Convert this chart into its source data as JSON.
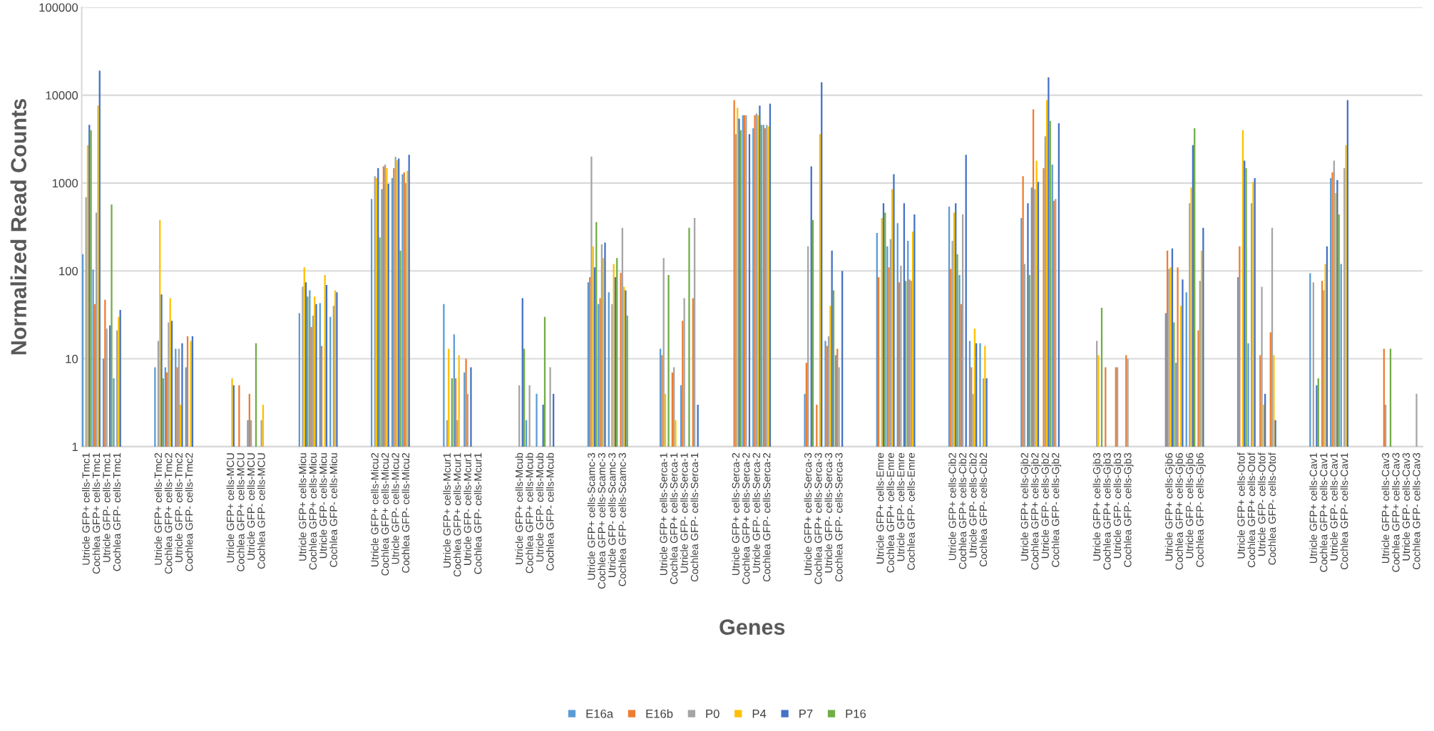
{
  "chart_data": {
    "type": "bar",
    "xlabel": "Genes",
    "ylabel": "Normalized Read Counts",
    "log": "y",
    "ylim": [
      1,
      100000
    ],
    "yticks": [
      1,
      10,
      100,
      1000,
      10000,
      100000
    ],
    "grid": "y",
    "legend": "bottom",
    "categories": [
      "Utricle GFP+ cells-Tmc1",
      "Cochlea GFP+ cells-Tmc1",
      "Utricle GFP- cells-Tmc1",
      "Cochlea GFP- cells-Tmc1",
      null,
      null,
      null,
      "Utricle GFP+ cells-Tmc2",
      "Cochlea GFP+ cells-Tmc2",
      "Utricle GFP- cells-Tmc2",
      "Cochlea GFP- cells-Tmc2",
      null,
      null,
      null,
      "Utricle GFP+ cells-MCU",
      "Cochlea GFP+ cells-MCU",
      "Utricle GFP- cells-MCU",
      "Cochlea GFP- cells-MCU",
      null,
      null,
      null,
      "Utricle GFP+ cells-Micu",
      "Cochlea GFP+ cells-Micu",
      "Utricle GFP- cells-Micu",
      "Cochlea GFP- cells-Micu",
      null,
      null,
      null,
      "Utricle GFP+ cells-Micu2",
      "Cochlea GFP+ cells-Micu2",
      "Utricle GFP- cells-Micu2",
      "Cochlea GFP- cells-Micu2",
      null,
      null,
      null,
      "Utricle GFP+ cells-Mcur1",
      "Cochlea GFP+ cells-Mcur1",
      "Utricle GFP- cells-Mcur1",
      "Cochlea GFP- cells-Mcur1",
      null,
      null,
      null,
      "Utricle GFP+ cells-Mcub",
      "Cochlea GFP+ cells-Mcub",
      "Utricle GFP- cells-Mcub",
      "Cochlea GFP- cells-Mcub",
      null,
      null,
      null,
      "Utricle GFP+ cells-Scamc-3",
      "Cochlea GFP+ cells-Scamc-3",
      "Utricle GFP- cells-Scamc-3",
      "Cochlea GFP- cells-Scamc-3",
      null,
      null,
      null,
      "Utricle GFP+ cells-Serca-1",
      "Cochlea GFP+ cells-Serca-1",
      "Utricle GFP- cells-Serca-1",
      "Cochlea GFP- cells-Serca-1",
      null,
      null,
      null,
      "Utricle GFP+ cells-Serca-2",
      "Cochlea GFP+ cells-Serca-2",
      "Utricle GFP- cells-Serca-2",
      "Cochlea GFP- cells-Serca-2",
      null,
      null,
      null,
      "Utricle GFP+ cells-Serca-3",
      "Cochlea GFP+ cells-Serca-3",
      "Utricle GFP- cells-Serca-3",
      "Cochlea GFP- cells-Serca-3",
      null,
      null,
      null,
      "Utricle GFP+ cells-Emre",
      "Cochlea GFP+ cells-Emre",
      "Utricle GFP- cells-Emre",
      "Cochlea GFP- cells-Emre",
      null,
      null,
      null,
      "Utricle GFP+ cells-Cib2",
      "Cochlea GFP+ cells-Cib2",
      "Utricle GFP- cells-Cib2",
      "Cochlea GFP- cells-Cib2",
      null,
      null,
      null,
      "Utricle GFP+ cells-Gjb2",
      "Cochlea GFP+ cells-Gjb2",
      "Utricle GFP- cells-Gjb2",
      "Cochlea GFP- cells-Gjb2",
      null,
      null,
      null,
      "Utricle GFP+ cells-Gjb3",
      "Cochlea GFP+ cells-Gjb3",
      "Utricle GFP- cells-Gjb3",
      "Cochlea GFP- cells-Gjb3",
      null,
      null,
      null,
      "Utricle GFP+ cells-Gjb6",
      "Cochlea GFP+ cells-Gjb6",
      "Utricle GFP- cells-Gjb6",
      "Cochlea GFP- cells-Gjb6",
      null,
      null,
      null,
      "Utricle GFP+ cells-Otof",
      "Cochlea GFP+ cells-Otof",
      "Utricle GFP- cells-Otof",
      "Cochlea GFP- cells-Otof",
      null,
      null,
      null,
      "Utricle GFP+ cells-Cav1",
      "Cochlea GFP+ cells-Cav1",
      "Utricle GFP- cells-Cav1",
      "Cochlea GFP- cells-Cav1",
      null,
      null,
      null,
      "Utricle GFP+ cells-Cav3",
      "Cochlea GFP+ cells-Cav3",
      "Utricle GFP- cells-Cav3",
      "Cochlea GFP- cells-Cav3"
    ],
    "series": [
      {
        "name": "E16a",
        "color": "#5b9bd5",
        "values": [
          155,
          104,
          10,
          6,
          null,
          null,
          null,
          8,
          8,
          13,
          8,
          null,
          null,
          null,
          null,
          null,
          2,
          null,
          null,
          null,
          null,
          33,
          60,
          43,
          30,
          null,
          null,
          null,
          660,
          850,
          1140,
          1260,
          null,
          null,
          null,
          42,
          19,
          7,
          null,
          null,
          null,
          null,
          null,
          2,
          4,
          null,
          null,
          null,
          null,
          74,
          42,
          57,
          null,
          null,
          null,
          null,
          13,
          null,
          5,
          null,
          null,
          null,
          null,
          null,
          5900,
          4200,
          4600,
          null,
          null,
          null,
          4,
          null,
          16,
          11,
          null,
          null,
          null,
          270,
          190,
          350,
          220,
          null,
          null,
          null,
          540,
          90,
          16,
          15,
          null,
          null,
          null,
          400,
          890,
          null,
          1620,
          null,
          null,
          null,
          null,
          null,
          null,
          null,
          null,
          null,
          null,
          33,
          9,
          57,
          null,
          null,
          null,
          null,
          85,
          15,
          null,
          null,
          null,
          null,
          null,
          94,
          null,
          1140,
          120,
          null,
          null,
          null,
          null,
          null,
          null,
          null
        ]
      },
      {
        "name": "E16b",
        "color": "#ed7d31",
        "values": [
          null,
          42,
          47,
          null,
          null,
          null,
          null,
          null,
          7,
          8,
          18,
          null,
          null,
          null,
          null,
          5,
          4,
          null,
          null,
          null,
          null,
          null,
          23,
          14,
          null,
          null,
          null,
          null,
          null,
          1550,
          1480,
          1320,
          null,
          null,
          null,
          null,
          6,
          10,
          null,
          null,
          null,
          null,
          null,
          null,
          null,
          null,
          null,
          null,
          null,
          85,
          49,
          null,
          95,
          null,
          null,
          null,
          11,
          7,
          27,
          49,
          null,
          null,
          null,
          8800,
          5900,
          5900,
          4200,
          null,
          null,
          null,
          9,
          3,
          14,
          13,
          null,
          null,
          null,
          85,
          110,
          74,
          80,
          null,
          null,
          null,
          105,
          42,
          8,
          null,
          null,
          null,
          null,
          1200,
          6900,
          1480,
          630,
          null,
          null,
          null,
          null,
          8,
          8,
          11,
          null,
          null,
          null,
          170,
          110,
          null,
          21,
          null,
          null,
          null,
          190,
          null,
          11,
          20,
          null,
          null,
          null,
          null,
          77,
          1320,
          null,
          null,
          null,
          null,
          13,
          null,
          null,
          null
        ]
      },
      {
        "name": "P0",
        "color": "#a5a5a5",
        "values": [
          690,
          460,
          22,
          21,
          null,
          null,
          null,
          16,
          26,
          13,
          null,
          null,
          null,
          null,
          null,
          null,
          2,
          2,
          null,
          null,
          null,
          66,
          31,
          null,
          40,
          null,
          null,
          null,
          1200,
          1620,
          1990,
          1000,
          null,
          null,
          null,
          2,
          2,
          4,
          null,
          null,
          null,
          null,
          5,
          5,
          null,
          8,
          null,
          null,
          null,
          2000,
          200,
          42,
          310,
          null,
          null,
          null,
          140,
          8,
          49,
          400,
          null,
          null,
          null,
          3600,
          5900,
          6200,
          4600,
          null,
          null,
          null,
          190,
          null,
          18,
          8,
          null,
          null,
          null,
          null,
          230,
          115,
          77,
          null,
          null,
          null,
          220,
          440,
          4,
          6,
          null,
          null,
          null,
          120,
          850,
          3400,
          660,
          null,
          null,
          null,
          16,
          null,
          8,
          10,
          null,
          null,
          null,
          105,
          null,
          590,
          77,
          null,
          null,
          null,
          null,
          590,
          66,
          310,
          null,
          null,
          null,
          74,
          60,
          1800,
          1480,
          null,
          null,
          null,
          3,
          null,
          null,
          4
        ]
      },
      {
        "name": "P4",
        "color": "#ffc000",
        "values": [
          2700,
          7600,
          null,
          30,
          null,
          null,
          null,
          380,
          49,
          3,
          16,
          null,
          null,
          null,
          6,
          null,
          null,
          3,
          null,
          null,
          null,
          110,
          51,
          90,
          60,
          null,
          null,
          null,
          1140,
          1480,
          1820,
          1380,
          null,
          null,
          null,
          13,
          11,
          null,
          null,
          null,
          null,
          null,
          null,
          null,
          null,
          null,
          null,
          null,
          null,
          190,
          140,
          120,
          66,
          null,
          null,
          null,
          4,
          2,
          null,
          null,
          null,
          null,
          null,
          7200,
          null,
          5900,
          4400,
          null,
          null,
          null,
          null,
          3600,
          40,
          null,
          null,
          null,
          null,
          400,
          850,
          null,
          280,
          null,
          null,
          null,
          460,
          null,
          22,
          14,
          null,
          null,
          null,
          null,
          1800,
          8800,
          null,
          null,
          null,
          null,
          11,
          null,
          null,
          null,
          null,
          null,
          null,
          110,
          40,
          890,
          170,
          null,
          null,
          null,
          4000,
          1030,
          3,
          11,
          null,
          null,
          null,
          null,
          120,
          770,
          2700,
          null,
          null,
          null,
          null,
          null,
          null,
          null
        ]
      },
      {
        "name": "P7",
        "color": "#4472c4",
        "values": [
          4600,
          19000,
          24,
          36,
          null,
          null,
          null,
          54,
          27,
          15,
          18,
          null,
          null,
          null,
          5,
          null,
          null,
          null,
          null,
          null,
          null,
          74,
          42,
          69,
          57,
          null,
          null,
          null,
          1480,
          980,
          1900,
          2100,
          null,
          null,
          null,
          null,
          null,
          8,
          null,
          null,
          null,
          null,
          49,
          null,
          3,
          4,
          null,
          null,
          null,
          110,
          210,
          85,
          60,
          null,
          null,
          null,
          null,
          null,
          null,
          3,
          null,
          null,
          null,
          5400,
          3600,
          7600,
          8000,
          null,
          null,
          null,
          1550,
          14000,
          170,
          100,
          null,
          null,
          null,
          590,
          1260,
          590,
          440,
          null,
          null,
          null,
          590,
          2100,
          15,
          6,
          null,
          null,
          null,
          590,
          1030,
          16000,
          4800,
          null,
          null,
          null,
          null,
          null,
          null,
          null,
          null,
          null,
          null,
          180,
          80,
          2700,
          310,
          null,
          null,
          null,
          1800,
          1140,
          4,
          2,
          null,
          null,
          null,
          5,
          190,
          1080,
          8800,
          null,
          null,
          null,
          null,
          null,
          null,
          null
        ]
      },
      {
        "name": "P16",
        "color": "#70ad47",
        "values": [
          4000,
          null,
          570,
          null,
          null,
          null,
          null,
          6,
          null,
          null,
          null,
          null,
          null,
          null,
          null,
          null,
          15,
          null,
          null,
          null,
          null,
          51,
          null,
          null,
          null,
          null,
          null,
          null,
          240,
          null,
          170,
          null,
          null,
          null,
          null,
          6,
          null,
          null,
          null,
          null,
          null,
          null,
          13,
          null,
          30,
          null,
          null,
          null,
          null,
          360,
          null,
          140,
          31,
          null,
          null,
          null,
          90,
          null,
          310,
          null,
          null,
          null,
          null,
          4000,
          null,
          4600,
          null,
          null,
          null,
          null,
          380,
          null,
          60,
          null,
          null,
          null,
          null,
          460,
          null,
          77,
          null,
          null,
          null,
          null,
          155,
          null,
          null,
          null,
          null,
          null,
          null,
          90,
          null,
          5100,
          null,
          null,
          null,
          null,
          38,
          null,
          null,
          null,
          null,
          null,
          null,
          26,
          null,
          4200,
          null,
          null,
          null,
          null,
          1480,
          null,
          null,
          null,
          null,
          null,
          null,
          6,
          null,
          440,
          null,
          null,
          null,
          null,
          13,
          null,
          null,
          null
        ]
      }
    ]
  }
}
